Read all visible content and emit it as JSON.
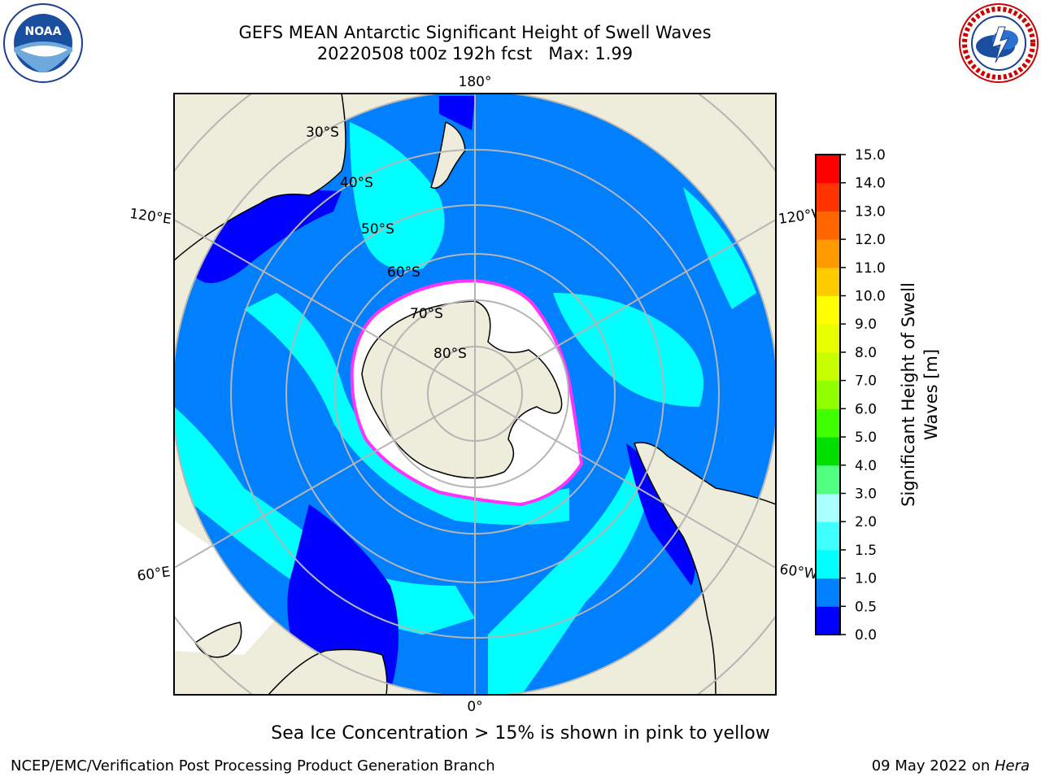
{
  "title": {
    "line1": "GEFS MEAN Antarctic Significant Height of Swell Waves",
    "line2": "20220508 t00z 192h fcst   Max: 1.99"
  },
  "map": {
    "projection": "south-polar-stereographic",
    "meridian_labels": {
      "top": "180°",
      "bottom": "0°",
      "upper_left": "120°E",
      "upper_right": "120°W",
      "lower_left": "60°E",
      "lower_right": "60°W"
    },
    "parallel_labels": [
      "30°S",
      "40°S",
      "50°S",
      "60°S",
      "70°S",
      "80°S"
    ],
    "colors": {
      "land": "#eeecda",
      "grid": "#b5b5b5",
      "coast": "#000000",
      "ice_edge": "#ff33ff"
    }
  },
  "colorbar": {
    "label_line1": "Significant Height of Swell",
    "label_line2": "Waves [m]",
    "ticks": [
      "0.0",
      "0.5",
      "1.0",
      "1.5",
      "2.0",
      "3.0",
      "4.0",
      "5.0",
      "6.0",
      "7.0",
      "8.0",
      "9.0",
      "10.0",
      "11.0",
      "12.0",
      "13.0",
      "14.0",
      "15.0"
    ],
    "colors": [
      "#0000ff",
      "#0080ff",
      "#00ffff",
      "#40ffff",
      "#aaffff",
      "#50ff80",
      "#00e000",
      "#40ff00",
      "#90ff00",
      "#c8ff00",
      "#e8ff00",
      "#ffff00",
      "#ffcc00",
      "#ff9900",
      "#ff6600",
      "#ff3300",
      "#ff0000"
    ]
  },
  "note": "Sea Ice Concentration > 15% is shown in pink to yellow",
  "footer": {
    "left": "NCEP/EMC/Verification Post Processing Product Generation Branch",
    "right_date": "09 May 2022 on ",
    "right_host": "Hera"
  },
  "logos": {
    "left": "NOAA",
    "right": "NATIONAL WEATHER SERVICE"
  }
}
